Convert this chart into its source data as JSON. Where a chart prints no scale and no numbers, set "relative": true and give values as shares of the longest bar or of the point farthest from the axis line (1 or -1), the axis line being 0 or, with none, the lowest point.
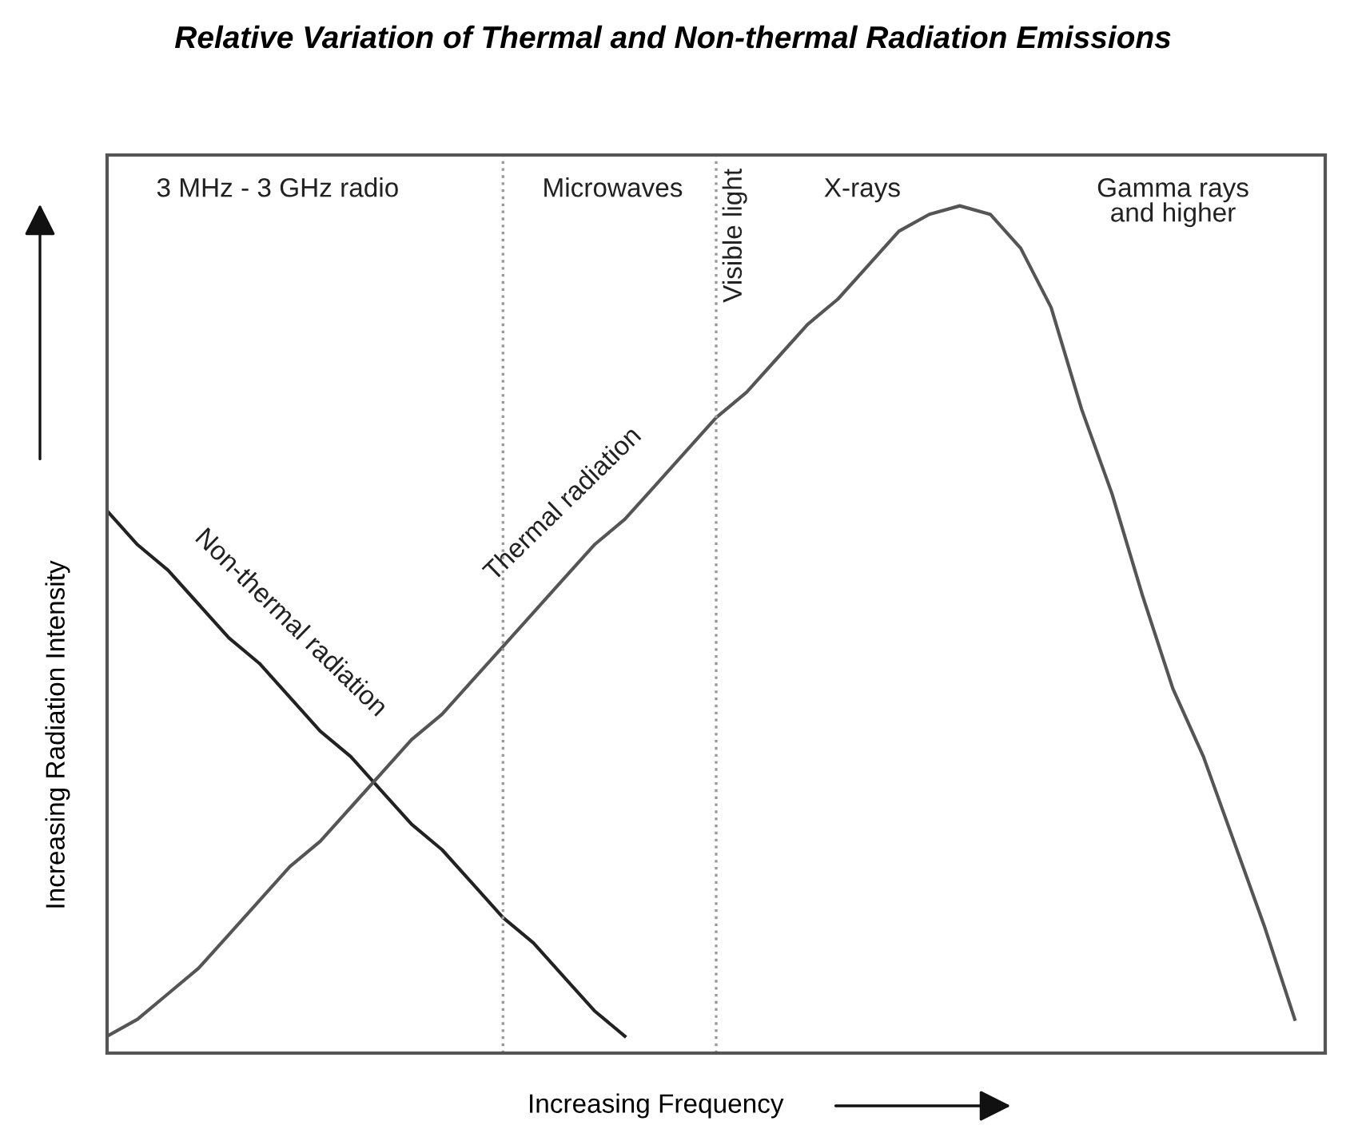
{
  "chart_data": {
    "type": "line",
    "title": "Relative Variation of Thermal and Non-thermal Radiation Emissions",
    "xlabel": "Increasing Frequency",
    "ylabel": "Increasing Radiation Intensity",
    "relative": true,
    "categories": [
      null,
      null,
      null,
      null,
      null,
      null,
      null,
      null,
      null,
      null,
      null,
      null,
      null,
      null,
      null,
      null,
      null,
      null,
      null,
      null,
      null,
      null,
      null,
      null,
      null,
      null,
      null,
      null,
      null,
      null,
      null,
      null,
      null,
      null,
      null,
      null,
      null,
      null,
      null,
      null,
      null
    ],
    "series": [
      {
        "name": "Non-thermal radiation",
        "color": "#222222",
        "values": [
          0.64,
          0.6,
          0.57,
          0.53,
          0.49,
          0.46,
          0.42,
          0.38,
          0.35,
          0.31,
          0.27,
          0.24,
          0.2,
          0.16,
          0.13,
          0.09,
          0.05,
          0.02,
          null,
          null,
          null,
          null,
          null,
          null,
          null,
          null,
          null,
          null,
          null,
          null,
          null,
          null,
          null,
          null,
          null,
          null,
          null,
          null,
          null,
          null,
          null
        ]
      },
      {
        "name": "Thermal radiation",
        "color": "#555555",
        "values": [
          0.02,
          0.04,
          0.07,
          0.1,
          0.14,
          0.18,
          0.22,
          0.25,
          0.29,
          0.33,
          0.37,
          0.4,
          0.44,
          0.48,
          0.52,
          0.56,
          0.6,
          0.63,
          0.67,
          0.71,
          0.75,
          0.78,
          0.82,
          0.86,
          0.89,
          0.93,
          0.97,
          0.99,
          1.0,
          0.99,
          0.95,
          0.88,
          0.76,
          0.66,
          0.54,
          0.43,
          0.35,
          0.25,
          0.15,
          0.04,
          null
        ]
      }
    ],
    "annotations": [
      "3 MHz - 3 GHz radio",
      "Microwaves",
      "Visible light",
      "X-rays",
      "Gamma rays\nand higher"
    ],
    "line_style": "solid",
    "marker": "none",
    "grid": false,
    "legend": false
  }
}
